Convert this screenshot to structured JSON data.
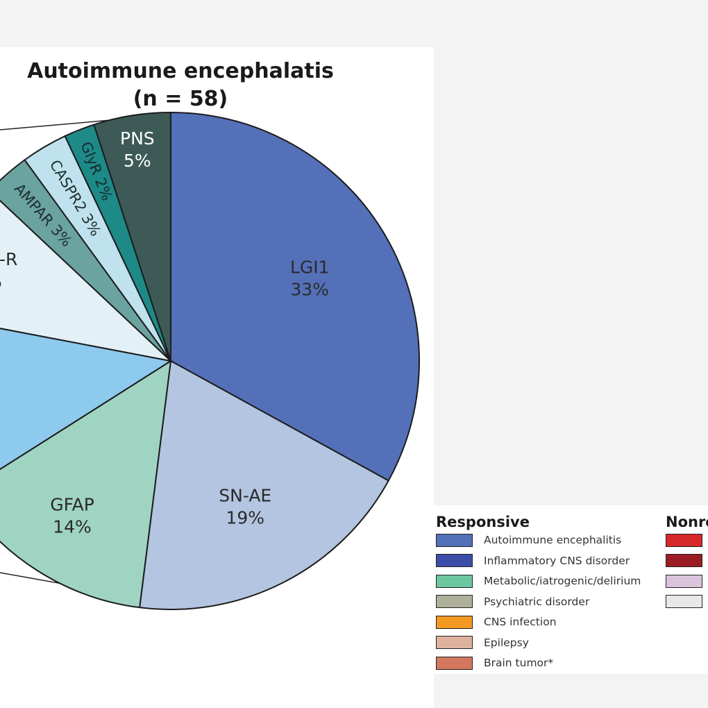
{
  "chart_data": {
    "type": "pie",
    "title": "Autoimmune encephalatis",
    "subtitle": "(n = 58)",
    "slices": [
      {
        "label": "LGI1",
        "pct_label": "33%",
        "value": 33,
        "color": "#5470b9",
        "text_color": "#2a2a2a",
        "label_visible": "LGI1"
      },
      {
        "label": "SN-AE",
        "pct_label": "19%",
        "value": 19,
        "color": "#b3c5e0",
        "text_color": "#2a2a2a",
        "label_visible": "SN-AE"
      },
      {
        "label": "GFAP",
        "pct_label": "14%",
        "value": 14,
        "color": "#9fd4c2",
        "text_color": "#2a2a2a",
        "label_visible": "GFAP"
      },
      {
        "label": "",
        "pct_label": "",
        "value": 12,
        "color": "#8ec9ee",
        "text_color": "#2a2a2a",
        "label_visible": "R"
      },
      {
        "label": "",
        "pct_label": "%",
        "value": 9,
        "color": "#e3f1f6",
        "text_color": "#2a2a2a",
        "label_visible": "A/B-R"
      },
      {
        "label": "AMPAR",
        "pct_label": "3%",
        "value": 3,
        "color": "#6aa3a0",
        "text_color": "#1e2e2e",
        "label_visible": "AMPAR 3%"
      },
      {
        "label": "CASPR2",
        "pct_label": "3%",
        "value": 3,
        "color": "#bfe2ee",
        "text_color": "#1e2e2e",
        "label_visible": "CASPR2 3%"
      },
      {
        "label": "GlyR",
        "pct_label": "2%",
        "value": 2,
        "color": "#1d8a88",
        "text_color": "#1a2a2a",
        "label_visible": "GlyR 2%"
      },
      {
        "label": "PNS",
        "pct_label": "5%",
        "value": 5,
        "color": "#3d5a57",
        "text_color": "#ffffff",
        "label_visible": "PNS"
      }
    ]
  },
  "legend": {
    "responsive_title": "Responsive",
    "nonresponsive_title": "Nonre",
    "responsive_items": [
      {
        "label": "Autoimmune encephalitis",
        "color": "#5470b9"
      },
      {
        "label": "Inflammatory CNS disorder",
        "color": "#3a4ea8"
      },
      {
        "label": "Metabolic/iatrogenic/delirium",
        "color": "#6cc7a0"
      },
      {
        "label": "Psychiatric disorder",
        "color": "#aeb09a"
      },
      {
        "label": "CNS infection",
        "color": "#f39a23"
      },
      {
        "label": "Epilepsy",
        "color": "#dfb29f"
      },
      {
        "label": "Brain tumor*",
        "color": "#d4775f"
      }
    ],
    "nonresponsive_items": [
      {
        "color": "#d7282c"
      },
      {
        "color": "#9b1c22"
      },
      {
        "color": "#d9c4dc"
      },
      {
        "color": "#e8e8e8"
      }
    ]
  }
}
